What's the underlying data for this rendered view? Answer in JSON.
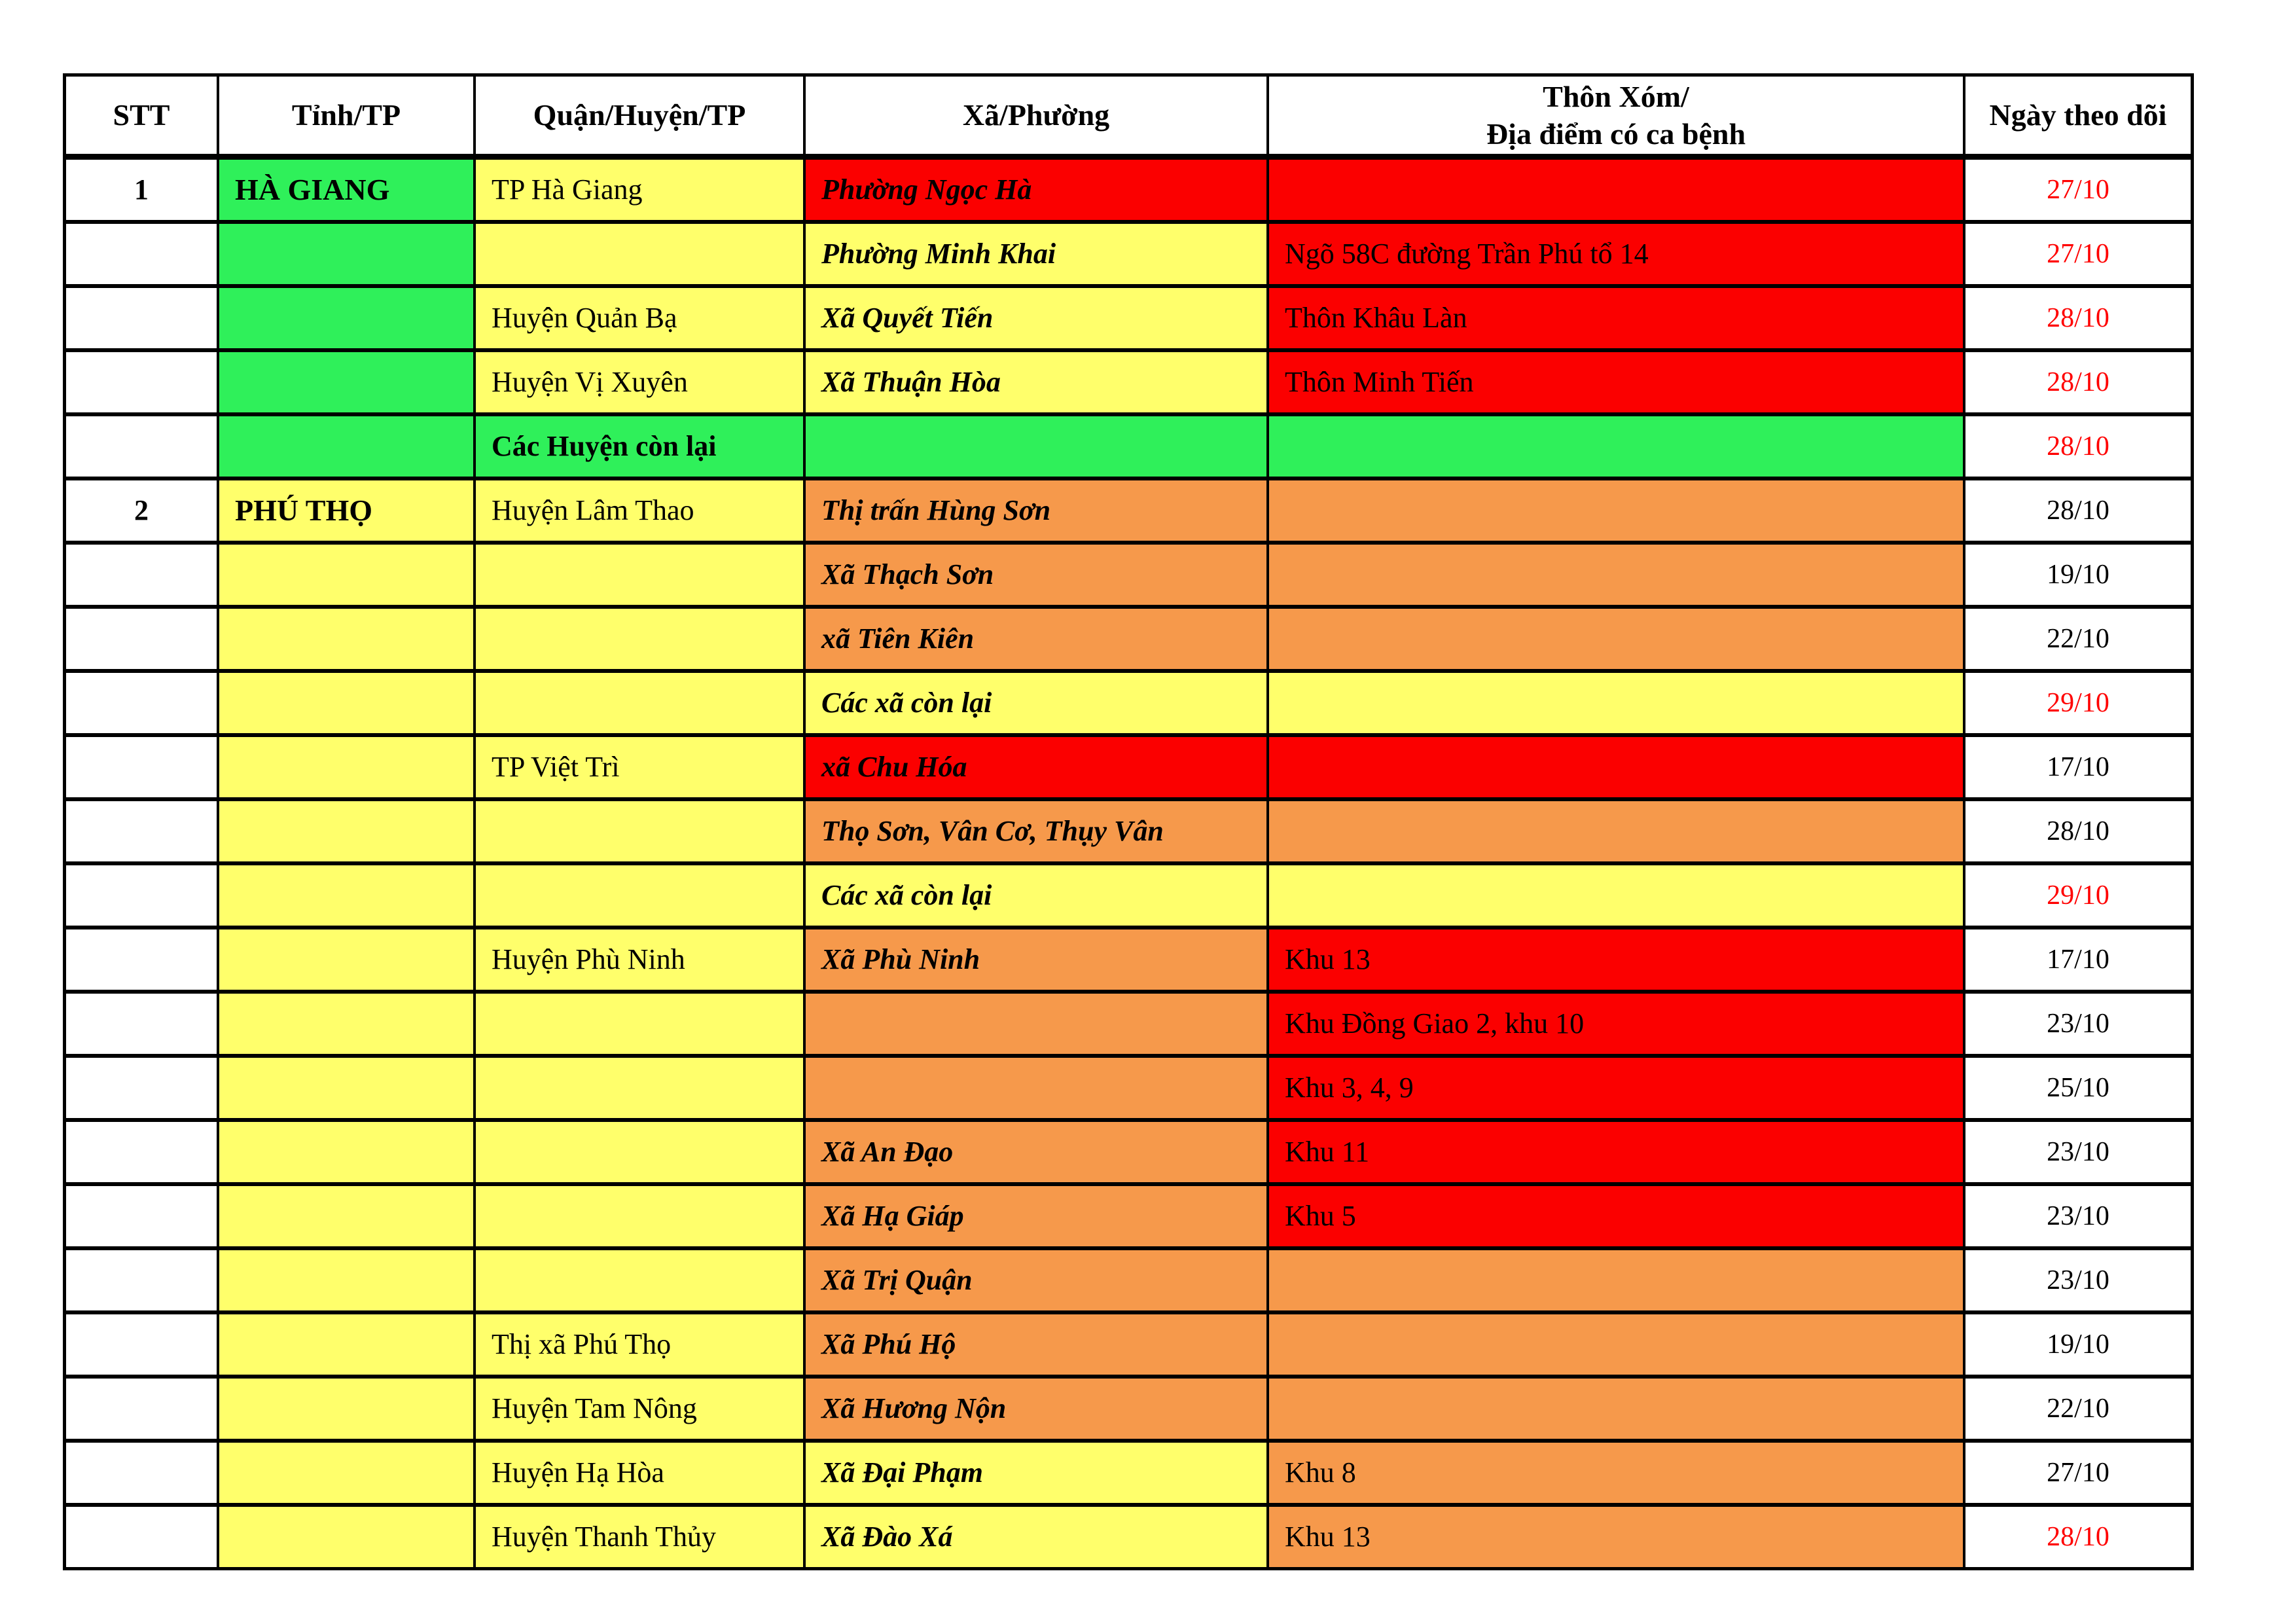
{
  "palette": {
    "white": "#FFFFFF",
    "green": "#2FF05A",
    "yellow": "#FFFF6B",
    "orange": "#F6994B",
    "red": "#FB0000",
    "date_red": "#FF0000",
    "black_text": "#000000",
    "border": "#000000"
  },
  "table": {
    "columns": [
      {
        "key": "stt",
        "label": "STT"
      },
      {
        "key": "province",
        "label": "Tỉnh/TP"
      },
      {
        "key": "district",
        "label": "Quận/Huyện/TP"
      },
      {
        "key": "ward",
        "label": "Xã/Phường"
      },
      {
        "key": "location",
        "label": "Thôn Xóm/\nĐịa điểm có ca bệnh"
      },
      {
        "key": "date",
        "label": "Ngày theo dõi"
      }
    ],
    "rows": [
      {
        "stt": {
          "text": "1"
        },
        "province": {
          "text": "HÀ GIANG",
          "bg": "green"
        },
        "district": {
          "text": "TP Hà Giang",
          "bg": "yellow"
        },
        "ward": {
          "text": "Phường Ngọc Hà",
          "bg": "red"
        },
        "location": {
          "text": "",
          "bg": "red"
        },
        "date": {
          "text": "27/10",
          "color": "#FF0000"
        }
      },
      {
        "stt": {
          "text": ""
        },
        "province": {
          "text": "",
          "bg": "green"
        },
        "district": {
          "text": "",
          "bg": "yellow"
        },
        "ward": {
          "text": "Phường Minh Khai",
          "bg": "yellow"
        },
        "location": {
          "text": "Ngõ 58C đường Trần Phú tổ 14",
          "bg": "red"
        },
        "date": {
          "text": "27/10",
          "color": "#FF0000"
        }
      },
      {
        "stt": {
          "text": ""
        },
        "province": {
          "text": "",
          "bg": "green"
        },
        "district": {
          "text": "Huyện Quản Bạ",
          "bg": "yellow"
        },
        "ward": {
          "text": "Xã Quyết Tiến",
          "bg": "yellow"
        },
        "location": {
          "text": "Thôn Khâu Làn",
          "bg": "red"
        },
        "date": {
          "text": "28/10",
          "color": "#FF0000"
        }
      },
      {
        "stt": {
          "text": ""
        },
        "province": {
          "text": "",
          "bg": "green"
        },
        "district": {
          "text": "Huyện Vị Xuyên",
          "bg": "yellow"
        },
        "ward": {
          "text": "Xã Thuận Hòa",
          "bg": "yellow"
        },
        "location": {
          "text": "Thôn Minh Tiến",
          "bg": "red"
        },
        "date": {
          "text": "28/10",
          "color": "#FF0000"
        }
      },
      {
        "stt": {
          "text": ""
        },
        "province": {
          "text": "",
          "bg": "green"
        },
        "district": {
          "text": "Các Huyện còn lại",
          "bg": "green",
          "style": "bold"
        },
        "ward": {
          "text": "",
          "bg": "green"
        },
        "location": {
          "text": "",
          "bg": "green"
        },
        "date": {
          "text": "28/10",
          "color": "#FF0000"
        }
      },
      {
        "stt": {
          "text": "2"
        },
        "province": {
          "text": "PHÚ THỌ",
          "bg": "yellow"
        },
        "district": {
          "text": "Huyện Lâm Thao",
          "bg": "yellow"
        },
        "ward": {
          "text": "Thị trấn Hùng Sơn",
          "bg": "orange"
        },
        "location": {
          "text": "",
          "bg": "orange"
        },
        "date": {
          "text": "28/10"
        }
      },
      {
        "stt": {
          "text": ""
        },
        "province": {
          "text": "",
          "bg": "yellow"
        },
        "district": {
          "text": "",
          "bg": "yellow"
        },
        "ward": {
          "text": "Xã Thạch Sơn",
          "bg": "orange"
        },
        "location": {
          "text": "",
          "bg": "orange"
        },
        "date": {
          "text": "19/10"
        }
      },
      {
        "stt": {
          "text": ""
        },
        "province": {
          "text": "",
          "bg": "yellow"
        },
        "district": {
          "text": "",
          "bg": "yellow"
        },
        "ward": {
          "text": "xã Tiên Kiên",
          "bg": "orange"
        },
        "location": {
          "text": "",
          "bg": "orange"
        },
        "date": {
          "text": "22/10"
        }
      },
      {
        "stt": {
          "text": ""
        },
        "province": {
          "text": "",
          "bg": "yellow"
        },
        "district": {
          "text": "",
          "bg": "yellow"
        },
        "ward": {
          "text": "Các xã còn lại",
          "bg": "yellow"
        },
        "location": {
          "text": "",
          "bg": "yellow"
        },
        "date": {
          "text": "29/10",
          "color": "#FF0000"
        }
      },
      {
        "stt": {
          "text": ""
        },
        "province": {
          "text": "",
          "bg": "yellow"
        },
        "district": {
          "text": "TP Việt Trì",
          "bg": "yellow"
        },
        "ward": {
          "text": "xã Chu Hóa",
          "bg": "red"
        },
        "location": {
          "text": "",
          "bg": "red"
        },
        "date": {
          "text": "17/10"
        }
      },
      {
        "stt": {
          "text": ""
        },
        "province": {
          "text": "",
          "bg": "yellow"
        },
        "district": {
          "text": "",
          "bg": "yellow"
        },
        "ward": {
          "text": "Thọ Sơn, Vân Cơ, Thụy Vân",
          "bg": "orange"
        },
        "location": {
          "text": "",
          "bg": "orange"
        },
        "date": {
          "text": "28/10"
        }
      },
      {
        "stt": {
          "text": ""
        },
        "province": {
          "text": "",
          "bg": "yellow"
        },
        "district": {
          "text": "",
          "bg": "yellow"
        },
        "ward": {
          "text": "Các xã còn lại",
          "bg": "yellow"
        },
        "location": {
          "text": "",
          "bg": "yellow"
        },
        "date": {
          "text": "29/10",
          "color": "#FF0000"
        }
      },
      {
        "stt": {
          "text": ""
        },
        "province": {
          "text": "",
          "bg": "yellow"
        },
        "district": {
          "text": "Huyện Phù Ninh",
          "bg": "yellow"
        },
        "ward": {
          "text": "Xã Phù Ninh",
          "bg": "orange"
        },
        "location": {
          "text": "Khu 13",
          "bg": "red"
        },
        "date": {
          "text": "17/10"
        }
      },
      {
        "stt": {
          "text": ""
        },
        "province": {
          "text": "",
          "bg": "yellow"
        },
        "district": {
          "text": "",
          "bg": "yellow"
        },
        "ward": {
          "text": "",
          "bg": "orange"
        },
        "location": {
          "text": "Khu Đồng Giao 2, khu 10",
          "bg": "red"
        },
        "date": {
          "text": "23/10"
        }
      },
      {
        "stt": {
          "text": ""
        },
        "province": {
          "text": "",
          "bg": "yellow"
        },
        "district": {
          "text": "",
          "bg": "yellow"
        },
        "ward": {
          "text": "",
          "bg": "orange"
        },
        "location": {
          "text": "Khu 3, 4, 9",
          "bg": "red"
        },
        "date": {
          "text": "25/10"
        }
      },
      {
        "stt": {
          "text": ""
        },
        "province": {
          "text": "",
          "bg": "yellow"
        },
        "district": {
          "text": "",
          "bg": "yellow"
        },
        "ward": {
          "text": "Xã An Đạo",
          "bg": "orange"
        },
        "location": {
          "text": "Khu 11",
          "bg": "red"
        },
        "date": {
          "text": "23/10"
        }
      },
      {
        "stt": {
          "text": ""
        },
        "province": {
          "text": "",
          "bg": "yellow"
        },
        "district": {
          "text": "",
          "bg": "yellow"
        },
        "ward": {
          "text": "Xã Hạ Giáp",
          "bg": "orange"
        },
        "location": {
          "text": "Khu 5",
          "bg": "red"
        },
        "date": {
          "text": "23/10"
        }
      },
      {
        "stt": {
          "text": ""
        },
        "province": {
          "text": "",
          "bg": "yellow"
        },
        "district": {
          "text": "",
          "bg": "yellow"
        },
        "ward": {
          "text": "Xã Trị Quận",
          "bg": "orange"
        },
        "location": {
          "text": "",
          "bg": "orange"
        },
        "date": {
          "text": "23/10"
        }
      },
      {
        "stt": {
          "text": ""
        },
        "province": {
          "text": "",
          "bg": "yellow"
        },
        "district": {
          "text": "Thị xã Phú Thọ",
          "bg": "yellow"
        },
        "ward": {
          "text": "Xã Phú Hộ",
          "bg": "orange"
        },
        "location": {
          "text": "",
          "bg": "orange"
        },
        "date": {
          "text": "19/10"
        }
      },
      {
        "stt": {
          "text": ""
        },
        "province": {
          "text": "",
          "bg": "yellow"
        },
        "district": {
          "text": "Huyện Tam Nông",
          "bg": "yellow"
        },
        "ward": {
          "text": "Xã Hương Nộn",
          "bg": "orange"
        },
        "location": {
          "text": "",
          "bg": "orange"
        },
        "date": {
          "text": "22/10"
        }
      },
      {
        "stt": {
          "text": ""
        },
        "province": {
          "text": "",
          "bg": "yellow"
        },
        "district": {
          "text": "Huyện Hạ Hòa",
          "bg": "yellow"
        },
        "ward": {
          "text": "Xã Đại Phạm",
          "bg": "yellow"
        },
        "location": {
          "text": "Khu 8",
          "bg": "orange"
        },
        "date": {
          "text": "27/10"
        }
      },
      {
        "stt": {
          "text": ""
        },
        "province": {
          "text": "",
          "bg": "yellow"
        },
        "district": {
          "text": "Huyện Thanh Thủy",
          "bg": "yellow"
        },
        "ward": {
          "text": "Xã Đào Xá",
          "bg": "yellow"
        },
        "location": {
          "text": "Khu 13",
          "bg": "orange"
        },
        "date": {
          "text": "28/10",
          "color": "#FF0000"
        }
      }
    ]
  }
}
